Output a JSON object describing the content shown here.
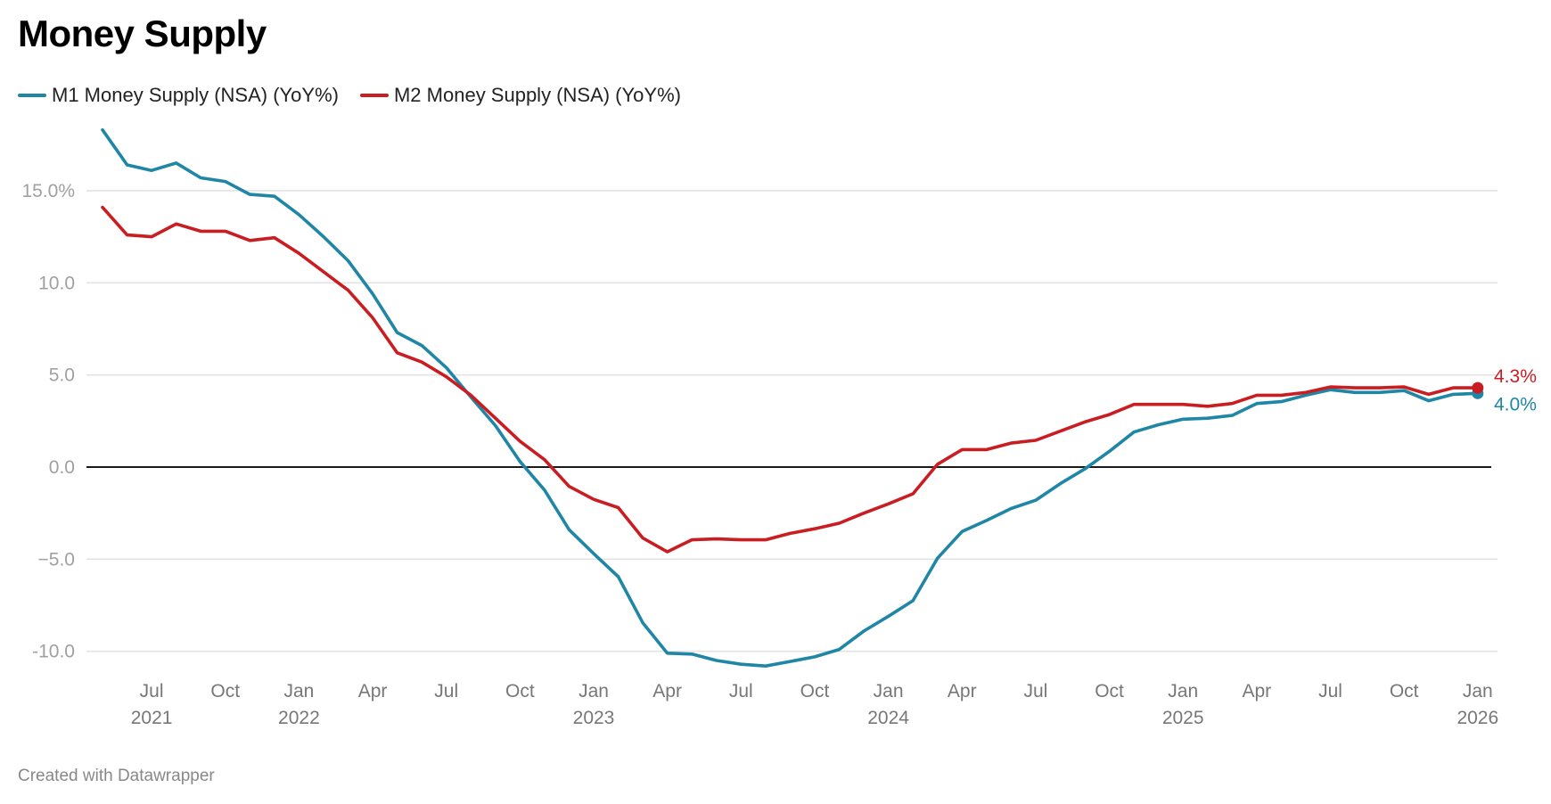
{
  "header": {
    "title": "Money Supply"
  },
  "legend": [
    {
      "label": "M1 Money Supply (NSA) (YoY%)",
      "color": "#1f86a5"
    },
    {
      "label": "M2 Money Supply (NSA) (YoY%)",
      "color": "#c91d22"
    }
  ],
  "footer": {
    "credit": "Created with Datawrapper"
  },
  "chart_data": {
    "type": "line",
    "title": "Money Supply",
    "xlabel": "",
    "ylabel": "",
    "ylim": [
      -11.5,
      19
    ],
    "grid": true,
    "legend_position": "top-left",
    "x_start": "2021-05",
    "x_end": "2026-01",
    "x": [
      "2021-05",
      "2021-06",
      "2021-07",
      "2021-08",
      "2021-09",
      "2021-10",
      "2021-11",
      "2021-12",
      "2022-01",
      "2022-02",
      "2022-03",
      "2022-04",
      "2022-05",
      "2022-06",
      "2022-07",
      "2022-08",
      "2022-09",
      "2022-10",
      "2022-11",
      "2022-12",
      "2023-01",
      "2023-02",
      "2023-03",
      "2023-04",
      "2023-05",
      "2023-06",
      "2023-07",
      "2023-08",
      "2023-09",
      "2023-10",
      "2023-11",
      "2023-12",
      "2024-01",
      "2024-02",
      "2024-03",
      "2024-04",
      "2024-05",
      "2024-06",
      "2024-07",
      "2024-08",
      "2024-09",
      "2024-10",
      "2024-11",
      "2024-12",
      "2025-01",
      "2025-02",
      "2025-03",
      "2025-04",
      "2025-05",
      "2025-06",
      "2025-07",
      "2025-08",
      "2025-09",
      "2025-10",
      "2025-11",
      "2025-12",
      "2026-01"
    ],
    "y_ticks": [
      {
        "value": 15,
        "label": "15.0%"
      },
      {
        "value": 10,
        "label": "10.0"
      },
      {
        "value": 5,
        "label": "5.0"
      },
      {
        "value": 0,
        "label": "0.0"
      },
      {
        "value": -5,
        "label": "−5.0"
      },
      {
        "value": -10,
        "label": "-10.0"
      }
    ],
    "x_ticks": [
      {
        "date": "2021-07",
        "label": "Jul",
        "year": "2021"
      },
      {
        "date": "2021-10",
        "label": "Oct",
        "year": ""
      },
      {
        "date": "2022-01",
        "label": "Jan",
        "year": "2022"
      },
      {
        "date": "2022-04",
        "label": "Apr",
        "year": ""
      },
      {
        "date": "2022-07",
        "label": "Jul",
        "year": ""
      },
      {
        "date": "2022-10",
        "label": "Oct",
        "year": ""
      },
      {
        "date": "2023-01",
        "label": "Jan",
        "year": "2023"
      },
      {
        "date": "2023-04",
        "label": "Apr",
        "year": ""
      },
      {
        "date": "2023-07",
        "label": "Jul",
        "year": ""
      },
      {
        "date": "2023-10",
        "label": "Oct",
        "year": ""
      },
      {
        "date": "2024-01",
        "label": "Jan",
        "year": "2024"
      },
      {
        "date": "2024-04",
        "label": "Apr",
        "year": ""
      },
      {
        "date": "2024-07",
        "label": "Jul",
        "year": ""
      },
      {
        "date": "2024-10",
        "label": "Oct",
        "year": ""
      },
      {
        "date": "2025-01",
        "label": "Jan",
        "year": "2025"
      },
      {
        "date": "2025-04",
        "label": "Apr",
        "year": ""
      },
      {
        "date": "2025-07",
        "label": "Jul",
        "year": ""
      },
      {
        "date": "2025-10",
        "label": "Oct",
        "year": ""
      },
      {
        "date": "2026-01",
        "label": "Jan",
        "year": "2026"
      }
    ],
    "series": [
      {
        "name": "M1 Money Supply (NSA) (YoY%)",
        "color": "#1f86a5",
        "end_label": "4.0%",
        "values": [
          18.3,
          16.4,
          16.1,
          16.5,
          15.7,
          15.5,
          14.8,
          14.7,
          13.7,
          12.5,
          11.2,
          9.4,
          7.3,
          6.6,
          5.4,
          3.8,
          2.25,
          0.3,
          -1.25,
          -3.4,
          -4.7,
          -5.95,
          -8.45,
          -10.1,
          -10.15,
          -10.5,
          -10.7,
          -10.8,
          -10.55,
          -10.3,
          -9.9,
          -8.9,
          -8.1,
          -7.25,
          -4.95,
          -3.5,
          -2.9,
          -2.25,
          -1.8,
          -0.9,
          -0.1,
          0.85,
          1.9,
          2.3,
          2.6,
          2.65,
          2.8,
          3.45,
          3.55,
          3.9,
          4.2,
          4.05,
          4.05,
          4.15,
          3.6,
          3.95,
          4.0
        ]
      },
      {
        "name": "M2 Money Supply (NSA) (YoY%)",
        "color": "#c91d22",
        "end_label": "4.3%",
        "values": [
          14.1,
          12.6,
          12.5,
          13.2,
          12.8,
          12.8,
          12.3,
          12.45,
          11.6,
          10.6,
          9.6,
          8.1,
          6.2,
          5.7,
          4.9,
          3.9,
          2.65,
          1.4,
          0.4,
          -1.05,
          -1.75,
          -2.2,
          -3.85,
          -4.6,
          -3.95,
          -3.9,
          -3.95,
          -3.95,
          -3.6,
          -3.35,
          -3.05,
          -2.5,
          -2.0,
          -1.45,
          0.15,
          0.95,
          0.95,
          1.3,
          1.45,
          1.95,
          2.45,
          2.85,
          3.4,
          3.4,
          3.4,
          3.3,
          3.45,
          3.9,
          3.9,
          4.05,
          4.35,
          4.3,
          4.3,
          4.35,
          3.95,
          4.3,
          4.3
        ]
      }
    ]
  }
}
